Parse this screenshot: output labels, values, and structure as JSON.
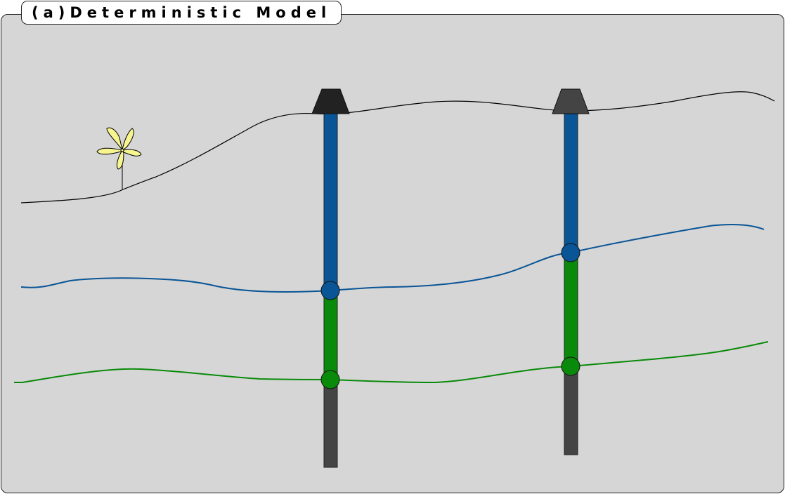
{
  "figure": {
    "title": "(a)Deterministic Model"
  },
  "colors": {
    "background": "#d6d6d6",
    "surface": "#000000",
    "upper_horizon": "#0a5596",
    "lower_horizon": "#0a8a0a",
    "well_bottom": "#444444",
    "wellhead_left": "#222222",
    "wellhead_right": "#444444",
    "turbine": "#f6f58f"
  },
  "icons": {
    "wind_turbine": "wind-turbine-icon",
    "wellhead": "wellhead-icon"
  }
}
